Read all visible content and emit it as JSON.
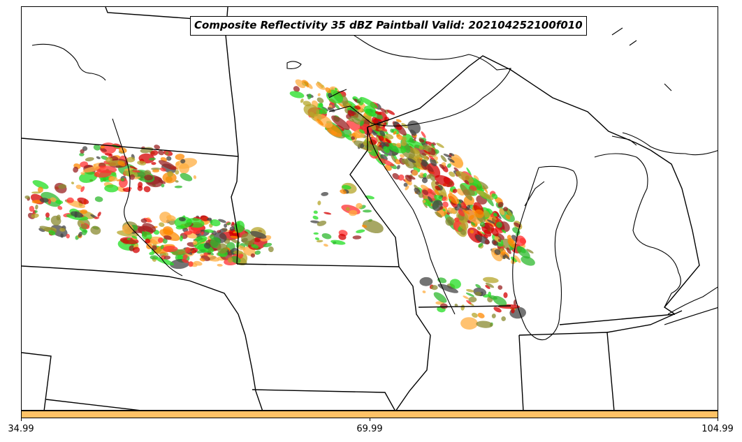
{
  "title": "Composite Reflectivity 35 dBZ Paintball Valid: 202104252100f010",
  "colorbar": {
    "color": "#ffc266",
    "ticks": [
      "34.99",
      "69.99",
      "104.99"
    ]
  },
  "member_colors": [
    "#d40000",
    "#ff3030",
    "#ff8800",
    "#ffae40",
    "#8a8a30",
    "#2eb82e",
    "#22dd22",
    "#9a2222",
    "#444444",
    "#b5a52a"
  ],
  "layers": [
    "state-borders",
    "great-lakes-shorelines",
    "radar-reflectivity-paintball"
  ]
}
